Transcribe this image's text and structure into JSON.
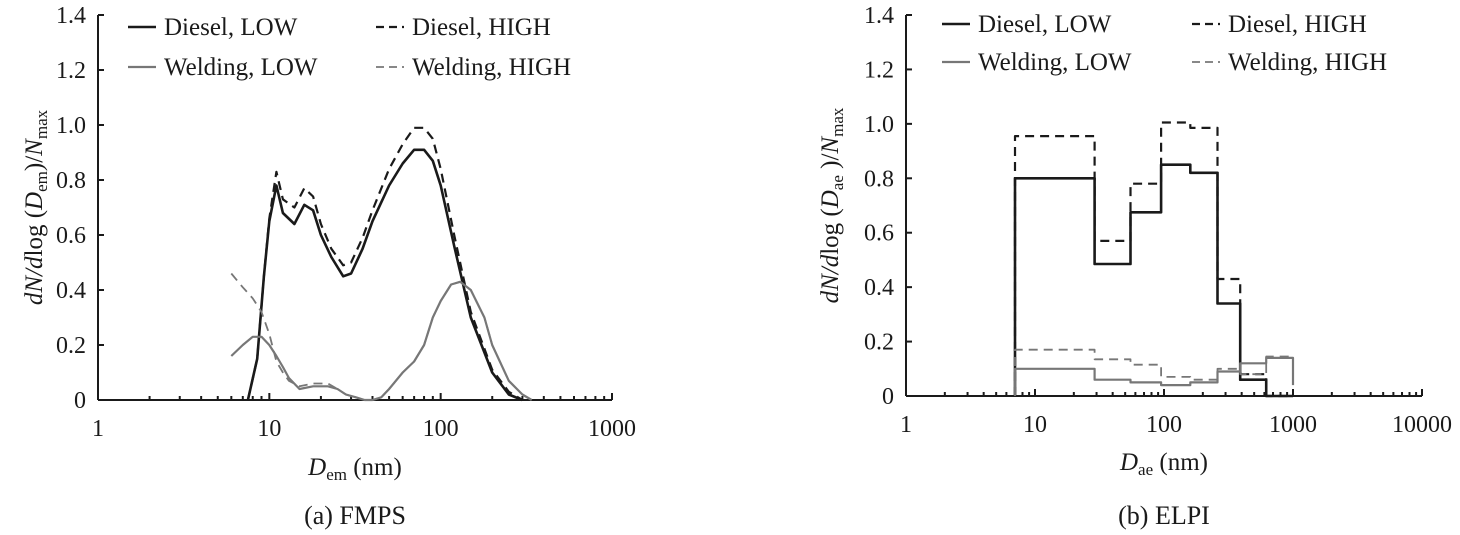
{
  "chart_data": [
    {
      "type": "line",
      "caption": "(a) FMPS",
      "xlabel_main": "D",
      "xlabel_sub": "em",
      "xlabel_unit": " (nm)",
      "ylabel_parts": [
        "dN/d",
        "log (",
        "D",
        "em",
        ")/",
        "N",
        "max"
      ],
      "xscale": "log",
      "xlim": [
        1,
        1000
      ],
      "ylim": [
        0,
        1.4
      ],
      "xticks": [
        1,
        10,
        100,
        1000
      ],
      "xtick_labels": [
        "1",
        "10",
        "100",
        "1000"
      ],
      "yticks": [
        0,
        0.2,
        0.4,
        0.6,
        0.8,
        1.0,
        1.2,
        1.4
      ],
      "ytick_labels": [
        "0",
        "0.2",
        "0.4",
        "0.6",
        "0.8",
        "1.0",
        "1.2",
        "1.4"
      ],
      "legend_position": "top",
      "series": [
        {
          "name": "Diesel, LOW",
          "color": "#1a1a1a",
          "dash": "solid",
          "width": 2.6,
          "x": [
            7.5,
            8.5,
            9.3,
            10,
            11,
            12,
            14,
            16,
            18,
            20,
            23,
            27,
            30,
            35,
            40,
            50,
            60,
            70,
            80,
            90,
            100,
            120,
            150,
            200,
            250,
            300
          ],
          "y": [
            0,
            0.15,
            0.45,
            0.65,
            0.78,
            0.68,
            0.64,
            0.71,
            0.69,
            0.6,
            0.52,
            0.45,
            0.46,
            0.55,
            0.65,
            0.78,
            0.86,
            0.91,
            0.91,
            0.87,
            0.78,
            0.56,
            0.3,
            0.1,
            0.02,
            0
          ]
        },
        {
          "name": "Diesel, HIGH",
          "color": "#1a1a1a",
          "dash": "dashed",
          "width": 2.2,
          "x": [
            7.5,
            8.5,
            9.3,
            10,
            11,
            12,
            14,
            16,
            18,
            20,
            23,
            27,
            30,
            35,
            40,
            50,
            60,
            70,
            80,
            90,
            100,
            120,
            150,
            200,
            250,
            300
          ],
          "y": [
            0,
            0.15,
            0.45,
            0.66,
            0.83,
            0.73,
            0.7,
            0.77,
            0.74,
            0.64,
            0.55,
            0.49,
            0.5,
            0.59,
            0.69,
            0.84,
            0.93,
            0.99,
            0.99,
            0.95,
            0.84,
            0.6,
            0.32,
            0.11,
            0.03,
            0
          ]
        },
        {
          "name": "Welding, LOW",
          "color": "#777777",
          "dash": "solid",
          "width": 2.2,
          "x": [
            6,
            7,
            8,
            9,
            10,
            11,
            12,
            13,
            15,
            18,
            20,
            22,
            25,
            28,
            32,
            36,
            40,
            45,
            50,
            60,
            70,
            80,
            90,
            100,
            115,
            130,
            150,
            180,
            200,
            250,
            300,
            340
          ],
          "y": [
            0.16,
            0.2,
            0.23,
            0.23,
            0.2,
            0.16,
            0.12,
            0.08,
            0.04,
            0.05,
            0.05,
            0.05,
            0.04,
            0.02,
            0.01,
            0,
            0,
            0.01,
            0.04,
            0.1,
            0.14,
            0.2,
            0.3,
            0.36,
            0.42,
            0.43,
            0.4,
            0.3,
            0.2,
            0.07,
            0.02,
            0
          ]
        },
        {
          "name": "Welding, HIGH",
          "color": "#777777",
          "dash": "dashed",
          "width": 1.8,
          "x": [
            6,
            7,
            8,
            9,
            10,
            11,
            12,
            13,
            15,
            18,
            20,
            22,
            25,
            28,
            32,
            36,
            40,
            45,
            50,
            60,
            70,
            80,
            90,
            100,
            115,
            130,
            150,
            180,
            200,
            250,
            300,
            340
          ],
          "y": [
            0.46,
            0.41,
            0.37,
            0.32,
            0.24,
            0.14,
            0.1,
            0.07,
            0.05,
            0.06,
            0.06,
            0.06,
            0.04,
            0.02,
            0.01,
            0,
            0,
            0.01,
            0.04,
            0.1,
            0.14,
            0.2,
            0.3,
            0.36,
            0.42,
            0.43,
            0.4,
            0.3,
            0.2,
            0.07,
            0.02,
            0
          ]
        }
      ]
    },
    {
      "type": "line",
      "caption": "(b) ELPI",
      "xlabel_main": "D",
      "xlabel_sub": "ae",
      "xlabel_unit": "  (nm)",
      "ylabel_parts": [
        "dN/d",
        "log (",
        "D",
        "ae",
        " )/",
        "N",
        "max"
      ],
      "xscale": "log",
      "xlim": [
        1,
        10000
      ],
      "ylim": [
        0,
        1.4
      ],
      "xticks": [
        1,
        10,
        100,
        1000,
        10000
      ],
      "xtick_labels": [
        "1",
        "10",
        "100",
        "1000",
        "10000"
      ],
      "yticks": [
        0,
        0.2,
        0.4,
        0.6,
        0.8,
        1.0,
        1.2,
        1.4
      ],
      "ytick_labels": [
        "0",
        "0.2",
        "0.4",
        "0.6",
        "0.8",
        "1.0",
        "1.2",
        "1.4"
      ],
      "legend_position": "top",
      "series": [
        {
          "name": "Diesel, LOW",
          "color": "#1a1a1a",
          "dash": "solid",
          "width": 2.6,
          "step": true,
          "edges": [
            7,
            29,
            55,
            95,
            160,
            260,
            390,
            620,
            1000
          ],
          "y": [
            0.8,
            0.485,
            0.675,
            0.85,
            0.82,
            0.34,
            0.06,
            0,
            0
          ]
        },
        {
          "name": "Diesel, HIGH",
          "color": "#1a1a1a",
          "dash": "dashed",
          "width": 2.2,
          "step": true,
          "edges": [
            7,
            29,
            55,
            95,
            160,
            260,
            390,
            620,
            1000
          ],
          "y": [
            0.955,
            0.57,
            0.78,
            1.005,
            0.985,
            0.43,
            0.08,
            0,
            0
          ]
        },
        {
          "name": "Welding, LOW",
          "color": "#777777",
          "dash": "solid",
          "width": 2.2,
          "step": true,
          "edges": [
            7,
            29,
            55,
            95,
            160,
            260,
            390,
            620,
            1000
          ],
          "y": [
            0.1,
            0.06,
            0.05,
            0.04,
            0.05,
            0.09,
            0.12,
            0.14,
            0.04
          ]
        },
        {
          "name": "Welding, HIGH",
          "color": "#777777",
          "dash": "dashed",
          "width": 1.8,
          "step": true,
          "edges": [
            7,
            29,
            55,
            95,
            160,
            260,
            390,
            620,
            1000
          ],
          "y": [
            0.17,
            0.135,
            0.115,
            0.07,
            0.06,
            0.1,
            0.08,
            0.145,
            0.045
          ]
        }
      ]
    }
  ]
}
